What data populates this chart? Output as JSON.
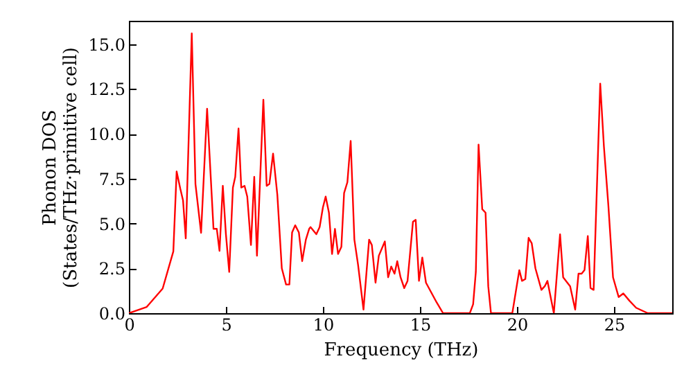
{
  "chart_data": {
    "type": "line",
    "xlabel": "Frequency (THz)",
    "ylabel": "Phonon DOS\n(States/THz·primitive cell)",
    "x": [
      0,
      0.91,
      1.74,
      2.29,
      2.46,
      2.65,
      2.79,
      2.93,
      3.24,
      3.43,
      3.72,
      4.03,
      4.36,
      4.53,
      4.67,
      4.84,
      5.0,
      5.17,
      5.36,
      5.48,
      5.65,
      5.79,
      5.96,
      6.1,
      6.29,
      6.46,
      6.6,
      6.93,
      7.1,
      7.24,
      7.43,
      7.65,
      7.88,
      8.1,
      8.27,
      8.41,
      8.57,
      8.76,
      8.93,
      9.12,
      9.29,
      9.36,
      9.66,
      9.83,
      10.0,
      10.14,
      10.31,
      10.47,
      10.62,
      10.78,
      10.95,
      11.09,
      11.26,
      11.43,
      11.62,
      11.81,
      12.09,
      12.38,
      12.52,
      12.71,
      12.88,
      13.19,
      13.36,
      13.52,
      13.69,
      13.83,
      14.0,
      14.19,
      14.36,
      14.64,
      14.78,
      14.95,
      15.12,
      15.31,
      15.86,
      16.19,
      17.57,
      17.74,
      17.88,
      18.02,
      18.21,
      18.38,
      18.52,
      18.66,
      19.76,
      20.12,
      20.26,
      20.43,
      20.6,
      20.76,
      20.95,
      21.26,
      21.43,
      21.57,
      21.9,
      22.22,
      22.38,
      22.74,
      23.0,
      23.17,
      23.33,
      23.48,
      23.65,
      23.79,
      23.95,
      24.29,
      24.48,
      24.71,
      24.95,
      25.24,
      25.48,
      25.79,
      26.14,
      26.74,
      28
    ],
    "series": [
      {
        "color": "#ff0000",
        "values": [
          0,
          0.34,
          1.37,
          3.44,
          7.9,
          6.93,
          6.29,
          4.17,
          15.6,
          7.2,
          4.48,
          11.4,
          4.7,
          4.7,
          3.47,
          7.1,
          4.4,
          2.3,
          7.0,
          7.6,
          10.3,
          7.0,
          7.1,
          6.5,
          3.8,
          7.6,
          3.2,
          11.9,
          7.1,
          7.2,
          8.9,
          6.6,
          2.5,
          1.6,
          1.6,
          4.5,
          4.9,
          4.5,
          2.9,
          4.1,
          4.7,
          4.8,
          4.4,
          4.8,
          5.9,
          6.5,
          5.6,
          3.3,
          4.7,
          3.3,
          3.7,
          6.7,
          7.3,
          9.6,
          4.1,
          2.7,
          0.2,
          4.1,
          3.8,
          1.7,
          3.2,
          4.0,
          2.0,
          2.6,
          2.2,
          2.9,
          2.0,
          1.4,
          1.8,
          5.1,
          5.2,
          1.8,
          3.1,
          1.7,
          0.6,
          0,
          0,
          0.5,
          2.3,
          9.4,
          5.8,
          5.6,
          1.5,
          0,
          0,
          2.4,
          1.8,
          1.9,
          4.2,
          3.9,
          2.5,
          1.3,
          1.5,
          1.8,
          0,
          4.4,
          2.0,
          1.5,
          0.2,
          2.2,
          2.2,
          2.4,
          4.3,
          1.4,
          1.3,
          12.8,
          9.3,
          6.0,
          2.0,
          0.9,
          1.1,
          0.7,
          0.3,
          0,
          0
        ]
      }
    ],
    "xlim": [
      0,
      28
    ],
    "ylim": [
      0,
      16.3
    ],
    "xticks": [
      0,
      5,
      10,
      15,
      20,
      25
    ],
    "yticks": [
      {
        "value": 0,
        "label": "0.0"
      },
      {
        "value": 2.5,
        "label": "2.5"
      },
      {
        "value": 5,
        "label": "5.0"
      },
      {
        "value": 7.5,
        "label": "7.5"
      },
      {
        "value": 10,
        "label": "10.0"
      },
      {
        "value": 12.5,
        "label": "12.5"
      },
      {
        "value": 15,
        "label": "15.0"
      }
    ],
    "grid": false,
    "line_style": "solid"
  }
}
